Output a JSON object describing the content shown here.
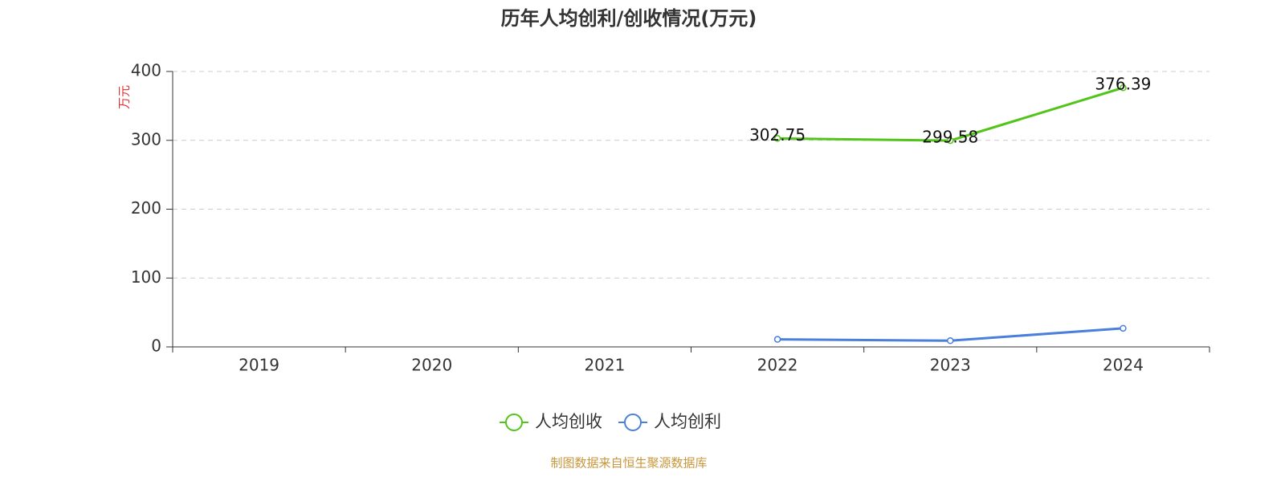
{
  "chart_data": {
    "type": "line",
    "title": "历年人均创利/创收情况(万元)",
    "y_label": "万元",
    "categories": [
      "2019",
      "2020",
      "2021",
      "2022",
      "2023",
      "2024"
    ],
    "series": [
      {
        "name": "人均创收",
        "color": "#52c41a",
        "labels": true,
        "values": [
          null,
          null,
          null,
          302.75,
          299.58,
          376.39
        ]
      },
      {
        "name": "人均创利",
        "color": "#4a7fdc",
        "labels": false,
        "values": [
          null,
          null,
          null,
          11,
          9,
          27
        ]
      }
    ],
    "ylim": [
      0,
      400
    ],
    "yticks": [
      0,
      100,
      200,
      300,
      400
    ],
    "grid": true,
    "legend": "bottom",
    "source": "制图数据来自恒生聚源数据库"
  }
}
